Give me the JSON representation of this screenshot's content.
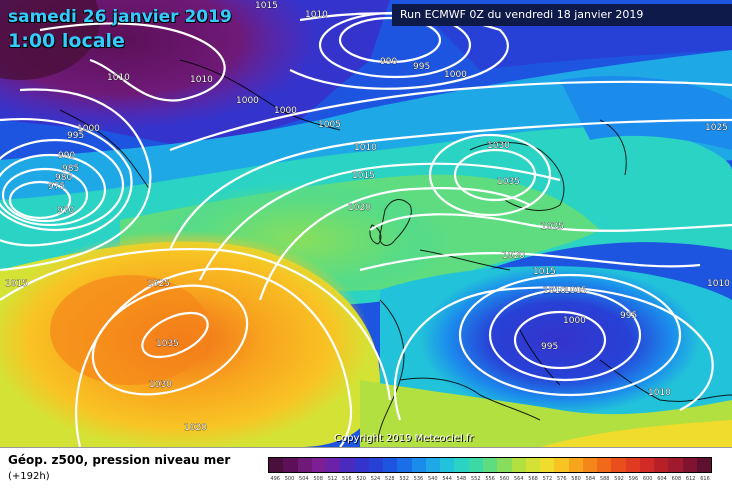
{
  "header": {
    "date": "samedi 26 janvier 2019",
    "local_time": "1:00 locale",
    "run": "Run ECMWF 0Z du vendredi 18 janvier 2019"
  },
  "copyright": "Copyright 2019 Meteociel.fr",
  "legend": {
    "title": "Géop. z500, pression niveau mer",
    "subtitle": "(+192h)",
    "scale_values": [
      "496",
      "500",
      "504",
      "508",
      "512",
      "516",
      "520",
      "524",
      "528",
      "532",
      "536",
      "540",
      "544",
      "548",
      "552",
      "556",
      "560",
      "564",
      "568",
      "572",
      "576",
      "580",
      "584",
      "588",
      "592",
      "596",
      "600",
      "604",
      "608",
      "612",
      "616"
    ],
    "scale_colors": [
      "#4a0f3a",
      "#5c1057",
      "#6f1a78",
      "#7d1e94",
      "#6a22a8",
      "#4b2bbd",
      "#3434cc",
      "#2741d6",
      "#1e55e0",
      "#1a6fe8",
      "#1b8cec",
      "#1ea8e6",
      "#22c2da",
      "#2ad3c4",
      "#3cd9a4",
      "#5fdc7f",
      "#88de5c",
      "#b2e040",
      "#d4e235",
      "#f0dc2c",
      "#f8c424",
      "#f8a51e",
      "#f5861a",
      "#f06a1a",
      "#e84f1c",
      "#e03a20",
      "#d22a24",
      "#b82028",
      "#9e1a2c",
      "#801430",
      "#5f0f30"
    ]
  },
  "map": {
    "isobar_labels": [
      "1015",
      "1010",
      "990",
      "995",
      "1000",
      "1010",
      "1010",
      "1000",
      "1000",
      "1005",
      "1000",
      "995",
      "990",
      "985",
      "980",
      "975",
      "970",
      "1010",
      "1015",
      "1020",
      "1030",
      "1035",
      "1025",
      "1025",
      "1020",
      "1015",
      "1010",
      "1005",
      "1000",
      "995",
      "995",
      "1010",
      "1015",
      "1010",
      "1025",
      "1035",
      "1030",
      "1020"
    ]
  }
}
